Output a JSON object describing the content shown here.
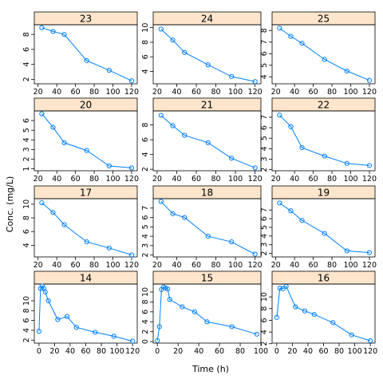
{
  "chart_data": {
    "type": "line",
    "layout": "lattice-4x3",
    "xlabel": "Time (h)",
    "ylabel": "Conc. (mg/L)",
    "series_color": "#0080ff",
    "strip_color": "#ffe5cc",
    "x_ticks": [
      "20",
      "40",
      "60",
      "80",
      "100",
      "120"
    ],
    "panels": [
      {
        "name": "23",
        "x": [
          24,
          36,
          48,
          72,
          96,
          120
        ],
        "y": [
          8.9,
          8.4,
          8.0,
          4.5,
          3.2,
          1.8
        ],
        "xlim": [
          16,
          126
        ],
        "ylim": [
          1.4,
          9.3
        ],
        "yticks": [
          2,
          4,
          6,
          8
        ],
        "xticks": [
          20,
          40,
          60,
          80,
          100,
          120
        ]
      },
      {
        "name": "24",
        "x": [
          24,
          36,
          48,
          72,
          96,
          120
        ],
        "y": [
          9.8,
          8.3,
          6.6,
          4.9,
          3.3,
          2.6
        ],
        "xlim": [
          16,
          126
        ],
        "ylim": [
          2.3,
          10.4
        ],
        "yticks": [
          4,
          6,
          8,
          10
        ],
        "xticks": [
          20,
          40,
          60,
          80,
          100,
          120
        ]
      },
      {
        "name": "25",
        "x": [
          24,
          36,
          48,
          72,
          96,
          120
        ],
        "y": [
          8.2,
          7.5,
          6.9,
          5.5,
          4.5,
          3.7
        ],
        "xlim": [
          16,
          126
        ],
        "ylim": [
          3.4,
          8.5
        ],
        "yticks": [
          4,
          5,
          6,
          7,
          8
        ],
        "xticks": [
          20,
          40,
          60,
          80,
          100,
          120
        ]
      },
      {
        "name": "20",
        "x": [
          24,
          36,
          48,
          72,
          96,
          120
        ],
        "y": [
          6.7,
          5.3,
          3.7,
          2.9,
          1.3,
          1.1
        ],
        "xlim": [
          16,
          126
        ],
        "ylim": [
          0.8,
          7.0
        ],
        "yticks": [
          1,
          2,
          3,
          4,
          5,
          6
        ],
        "xticks": [
          20,
          40,
          60,
          80,
          100,
          120
        ]
      },
      {
        "name": "21",
        "x": [
          24,
          36,
          48,
          72,
          96,
          120
        ],
        "y": [
          9.3,
          7.9,
          6.6,
          5.6,
          3.5,
          2.2
        ],
        "xlim": [
          16,
          126
        ],
        "ylim": [
          1.8,
          9.9
        ],
        "yticks": [
          2,
          4,
          6,
          8
        ],
        "xticks": [
          20,
          40,
          60,
          80,
          100,
          120
        ]
      },
      {
        "name": "22",
        "x": [
          24,
          36,
          48,
          72,
          96,
          120
        ],
        "y": [
          7.2,
          6.1,
          4.1,
          3.3,
          2.6,
          2.4
        ],
        "xlim": [
          16,
          126
        ],
        "ylim": [
          1.9,
          7.6
        ],
        "yticks": [
          2,
          3,
          4,
          5,
          6,
          7
        ],
        "xticks": [
          20,
          40,
          60,
          80,
          100,
          120
        ]
      },
      {
        "name": "17",
        "x": [
          24,
          36,
          48,
          72,
          96,
          120
        ],
        "y": [
          10.2,
          8.8,
          7.0,
          4.5,
          3.6,
          2.6
        ],
        "xlim": [
          16,
          126
        ],
        "ylim": [
          2.3,
          10.8
        ],
        "yticks": [
          4,
          6,
          8,
          10
        ],
        "xticks": [
          20,
          40,
          60,
          80,
          100,
          120
        ]
      },
      {
        "name": "18",
        "x": [
          24,
          36,
          48,
          72,
          96,
          120
        ],
        "y": [
          7.7,
          6.4,
          6.0,
          4.0,
          3.4,
          2.1
        ],
        "xlim": [
          16,
          126
        ],
        "ylim": [
          1.8,
          8.0
        ],
        "yticks": [
          2,
          3,
          4,
          5,
          6,
          7
        ],
        "xticks": [
          20,
          40,
          60,
          80,
          100,
          120
        ]
      },
      {
        "name": "19",
        "x": [
          24,
          36,
          48,
          72,
          96,
          120
        ],
        "y": [
          7.8,
          6.9,
          5.8,
          4.3,
          2.3,
          2.1
        ],
        "xlim": [
          16,
          126
        ],
        "ylim": [
          1.6,
          8.3
        ],
        "yticks": [
          2,
          3,
          4,
          5,
          6,
          7
        ],
        "xticks": [
          20,
          40,
          60,
          80,
          100,
          120
        ]
      },
      {
        "name": "14",
        "x": [
          0,
          2,
          4,
          6,
          8,
          12,
          24,
          36,
          48,
          72,
          96,
          120
        ],
        "y": [
          3.8,
          12.5,
          13.0,
          12.5,
          11.8,
          10.0,
          6.2,
          6.8,
          4.6,
          3.6,
          2.8,
          1.8
        ],
        "xlim": [
          -6,
          126
        ],
        "ylim": [
          1.4,
          13.4
        ],
        "yticks": [
          2,
          4,
          6,
          8,
          10
        ],
        "xticks": [
          0,
          20,
          40,
          60,
          80,
          100,
          120
        ]
      },
      {
        "name": "15",
        "x": [
          0,
          2,
          4,
          6,
          8,
          10,
          12,
          24,
          36,
          48,
          72,
          96
        ],
        "y": [
          0.2,
          3.0,
          10.5,
          11.0,
          10.8,
          10.6,
          8.5,
          7.0,
          6.0,
          4.0,
          3.0,
          1.5
        ],
        "xlim": [
          -4,
          100
        ],
        "ylim": [
          -0.3,
          11.6
        ],
        "yticks": [
          0,
          2,
          4,
          6,
          8,
          10
        ],
        "xticks": [
          0,
          20,
          40,
          60,
          80,
          100
        ]
      },
      {
        "name": "16",
        "x": [
          0,
          4,
          8,
          12,
          24,
          36,
          48,
          72,
          96,
          120
        ],
        "y": [
          6.5,
          11.5,
          11.4,
          11.8,
          8.3,
          7.6,
          7.0,
          5.6,
          3.5,
          2.5
        ],
        "xlim": [
          -6,
          126
        ],
        "ylim": [
          2.1,
          12.2
        ],
        "yticks": [
          2,
          4,
          6,
          8,
          10
        ],
        "xticks": [
          0,
          20,
          40,
          60,
          80,
          100,
          120
        ]
      }
    ]
  }
}
